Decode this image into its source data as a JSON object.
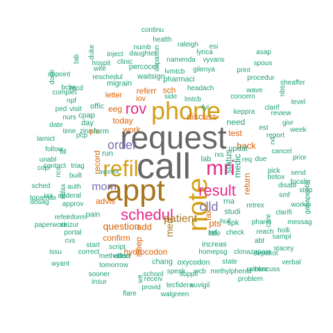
{
  "palette": {
    "teal": "#1b9e77",
    "orange": "#d95f02",
    "purple": "#7570b3",
    "magenta": "#e7298a",
    "olive": "#a6761d",
    "gold": "#d4a017",
    "gray": "#666666"
  },
  "words": [
    {
      "text": "request",
      "c": "gray"
    },
    {
      "text": "call",
      "c": "gray"
    },
    {
      "text": "appt",
      "c": "olive"
    },
    {
      "text": "phone",
      "c": "gold"
    },
    {
      "text": "note",
      "c": "gold"
    },
    {
      "text": "refil",
      "c": "gold"
    },
    {
      "text": "mri",
      "c": "magenta"
    },
    {
      "text": "result",
      "c": "magenta"
    },
    {
      "text": "schedul",
      "c": "magenta"
    },
    {
      "text": "rov",
      "c": "magenta"
    },
    {
      "text": "order",
      "c": "purple"
    },
    {
      "text": "mom",
      "c": "purple"
    },
    {
      "text": "clld",
      "c": "purple"
    },
    {
      "text": "patient",
      "c": "olive"
    },
    {
      "text": "med",
      "c": "olive"
    },
    {
      "text": "question",
      "c": "orange"
    },
    {
      "text": "advis",
      "c": "orange"
    },
    {
      "text": "discuss",
      "c": "orange"
    },
    {
      "text": "today",
      "c": "orange"
    },
    {
      "text": "work",
      "c": "orange"
    },
    {
      "text": "referr",
      "c": "orange"
    },
    {
      "text": "eeg",
      "c": "orange"
    },
    {
      "text": "sch",
      "c": "orange"
    },
    {
      "text": "pharmaci",
      "c": "teal"
    },
    {
      "text": "letter",
      "c": "orange"
    },
    {
      "text": "iov",
      "c": "orange"
    },
    {
      "text": "pls",
      "c": "orange"
    },
    {
      "text": "back",
      "c": "orange"
    },
    {
      "text": "test",
      "c": "orange"
    },
    {
      "text": "return",
      "c": "orange"
    },
    {
      "text": "add",
      "c": "orange"
    },
    {
      "text": "pts",
      "c": "orange"
    },
    {
      "text": "fax",
      "c": "orange"
    },
    {
      "text": "confirm",
      "c": "orange"
    },
    {
      "text": "hydrocodon",
      "c": "orange"
    },
    {
      "text": "record",
      "c": "orange"
    },
    {
      "text": "status",
      "c": "teal"
    },
    {
      "text": "medic",
      "c": "teal"
    },
    {
      "text": "updat",
      "c": "teal"
    },
    {
      "text": "need",
      "c": "teal"
    },
    {
      "text": "lab",
      "c": "teal"
    },
    {
      "text": "rna",
      "c": "teal"
    },
    {
      "text": "studi",
      "c": "teal"
    },
    {
      "text": "late",
      "c": "teal"
    },
    {
      "text": "increas",
      "c": "teal"
    },
    {
      "text": "spk",
      "c": "teal"
    },
    {
      "text": "chang",
      "c": "teal"
    },
    {
      "text": "oxycodon",
      "c": "teal"
    },
    {
      "text": "sleep",
      "c": "orange"
    },
    {
      "text": "pain",
      "c": "teal"
    },
    {
      "text": "run",
      "c": "teal"
    },
    {
      "text": "form",
      "c": "teal"
    },
    {
      "text": "day",
      "c": "teal"
    },
    {
      "text": "offic",
      "c": "teal"
    },
    {
      "text": "cpap",
      "c": "teal"
    },
    {
      "text": "migrain",
      "c": "teal"
    },
    {
      "text": "percocet",
      "c": "teal"
    },
    {
      "text": "waitsign",
      "c": "teal"
    },
    {
      "text": "lvmtcb",
      "c": "teal"
    },
    {
      "text": "script",
      "c": "teal"
    },
    {
      "text": "portal",
      "c": "teal"
    },
    {
      "text": "auth",
      "c": "teal"
    },
    {
      "text": "triag",
      "c": "teal"
    },
    {
      "text": "built",
      "c": "teal"
    },
    {
      "text": "fill",
      "c": "teal"
    },
    {
      "text": "contact",
      "c": "teal"
    },
    {
      "text": "approv",
      "c": "teal"
    },
    {
      "text": "adderal",
      "c": "teal"
    },
    {
      "text": "rxs",
      "c": "teal"
    },
    {
      "text": "req",
      "c": "teal"
    },
    {
      "text": "due",
      "c": "teal"
    },
    {
      "text": "fyi",
      "c": "teal"
    },
    {
      "text": "homepsg",
      "c": "teal"
    },
    {
      "text": "state",
      "c": "teal"
    },
    {
      "text": "school",
      "c": "teal"
    },
    {
      "text": "speak",
      "c": "teal"
    },
    {
      "text": "wcb",
      "c": "teal"
    },
    {
      "text": "tomorrow",
      "c": "teal"
    },
    {
      "text": "effect",
      "c": "teal"
    },
    {
      "text": "start",
      "c": "teal"
    },
    {
      "text": "seizur",
      "c": "teal"
    },
    {
      "text": "paperwork",
      "c": "teal"
    },
    {
      "text": "avonex",
      "c": "teal"
    },
    {
      "text": "daughter",
      "c": "teal"
    },
    {
      "text": "wife",
      "c": "teal"
    },
    {
      "text": "reschedul",
      "c": "teal"
    },
    {
      "text": "recd",
      "c": "teal"
    },
    {
      "text": "pcp",
      "c": "teal"
    },
    {
      "text": "time",
      "c": "teal"
    },
    {
      "text": "zinn",
      "c": "teal"
    },
    {
      "text": "pharm",
      "c": "teal"
    },
    {
      "text": "check",
      "c": "teal"
    },
    {
      "text": "abt",
      "c": "teal"
    },
    {
      "text": "hull",
      "c": "teal"
    },
    {
      "text": "ref",
      "c": "teal"
    },
    {
      "text": "concuss",
      "c": "teal"
    },
    {
      "text": "retrex",
      "c": "teal"
    },
    {
      "text": "cancel",
      "c": "teal"
    },
    {
      "text": "botox",
      "c": "teal"
    },
    {
      "text": "focalin",
      "c": "teal"
    },
    {
      "text": "workin",
      "c": "teal"
    },
    {
      "text": "disabl",
      "c": "teal"
    },
    {
      "text": "pick",
      "c": "teal"
    },
    {
      "text": "send",
      "c": "teal"
    },
    {
      "text": "report",
      "c": "teal"
    },
    {
      "text": "prior",
      "c": "teal"
    },
    {
      "text": "week",
      "c": "teal"
    },
    {
      "text": "est",
      "c": "teal"
    },
    {
      "text": "clarif",
      "c": "teal"
    },
    {
      "text": "keppra",
      "c": "teal"
    },
    {
      "text": "concern",
      "c": "teal"
    },
    {
      "text": "headach",
      "c": "teal"
    },
    {
      "text": "lmtcb",
      "c": "teal"
    },
    {
      "text": "gilenya",
      "c": "teal"
    },
    {
      "text": "vyvans",
      "c": "teal"
    },
    {
      "text": "lyrica",
      "c": "teal"
    },
    {
      "text": "raleigh",
      "c": "teal"
    },
    {
      "text": "health",
      "c": "teal"
    },
    {
      "text": "continu",
      "c": "teal"
    },
    {
      "text": "numb",
      "c": "teal"
    },
    {
      "text": "namenda",
      "c": "teal"
    },
    {
      "text": "inject",
      "c": "teal"
    },
    {
      "text": "hospit",
      "c": "teal"
    },
    {
      "text": "clinic",
      "c": "teal"
    },
    {
      "text": "esi",
      "c": "teal"
    },
    {
      "text": "asap",
      "c": "teal"
    },
    {
      "text": "spous",
      "c": "teal"
    },
    {
      "text": "print",
      "c": "teal"
    },
    {
      "text": "procedur",
      "c": "teal"
    },
    {
      "text": "wave",
      "c": "teal"
    },
    {
      "text": "sheaffer",
      "c": "teal"
    },
    {
      "text": "level",
      "c": "teal"
    },
    {
      "text": "review",
      "c": "teal"
    },
    {
      "text": "givr",
      "c": "teal"
    },
    {
      "text": "appoint",
      "c": "teal"
    },
    {
      "text": "bcbs",
      "c": "teal"
    },
    {
      "text": "complet",
      "c": "teal"
    },
    {
      "text": "npf",
      "c": "teal"
    },
    {
      "text": "ped",
      "c": "teal"
    },
    {
      "text": "visit",
      "c": "teal"
    },
    {
      "text": "nurs",
      "c": "teal"
    },
    {
      "text": "date",
      "c": "teal"
    },
    {
      "text": "lamict",
      "c": "teal"
    },
    {
      "text": "follow",
      "c": "teal"
    },
    {
      "text": "unabl",
      "c": "teal"
    },
    {
      "text": "copi",
      "c": "teal"
    },
    {
      "text": "sched",
      "c": "teal"
    },
    {
      "text": "topamax",
      "c": "teal"
    },
    {
      "text": "dosag",
      "c": "teal"
    },
    {
      "text": "refer",
      "c": "teal"
    },
    {
      "text": "inform",
      "c": "teal"
    },
    {
      "text": "cvs",
      "c": "teal"
    },
    {
      "text": "issu",
      "c": "teal"
    },
    {
      "text": "wyant",
      "c": "teal"
    },
    {
      "text": "correct",
      "c": "teal"
    },
    {
      "text": "methadon",
      "c": "teal"
    },
    {
      "text": "sooner",
      "c": "teal"
    },
    {
      "text": "insur",
      "c": "teal"
    },
    {
      "text": "receiv",
      "c": "teal"
    },
    {
      "text": "provid",
      "c": "teal"
    },
    {
      "text": "tecfidera",
      "c": "teal"
    },
    {
      "text": "nuvigil",
      "c": "teal"
    },
    {
      "text": "flare",
      "c": "teal"
    },
    {
      "text": "walgreen",
      "c": "teal"
    },
    {
      "text": "methylphenid",
      "c": "teal"
    },
    {
      "text": "problem",
      "c": "teal"
    },
    {
      "text": "rathkrc",
      "c": "teal"
    },
    {
      "text": "clonazepam",
      "c": "teal"
    },
    {
      "text": "verbal",
      "c": "teal"
    },
    {
      "text": "stacey",
      "c": "teal"
    },
    {
      "text": "depakot",
      "c": "teal"
    },
    {
      "text": "reach",
      "c": "teal"
    },
    {
      "text": "sampl",
      "c": "teal"
    },
    {
      "text": "clarifi",
      "c": "teal"
    },
    {
      "text": "holli",
      "c": "teal"
    },
    {
      "text": "messag",
      "c": "teal"
    },
    {
      "text": "smf",
      "c": "teal"
    },
    {
      "text": "suppli",
      "c": "teal"
    },
    {
      "text": "side",
      "c": "teal"
    },
    {
      "text": "left",
      "c": "teal"
    },
    {
      "text": "care",
      "c": "teal"
    },
    {
      "text": "gabapentin",
      "c": "teal"
    },
    {
      "text": "stop",
      "c": "teal"
    },
    {
      "text": "tab",
      "c": "teal"
    },
    {
      "text": "duke",
      "c": "teal"
    },
    {
      "text": "copaxon",
      "c": "teal"
    },
    {
      "text": "rxt",
      "c": "teal"
    },
    {
      "text": "rxs",
      "c": "teal"
    },
    {
      "text": "refax",
      "c": "teal"
    },
    {
      "text": "dose",
      "c": "teal"
    },
    {
      "text": "nbs",
      "c": "teal"
    },
    {
      "text": "ncs",
      "c": "teal"
    },
    {
      "text": "outfill",
      "c": "teal"
    }
  ]
}
